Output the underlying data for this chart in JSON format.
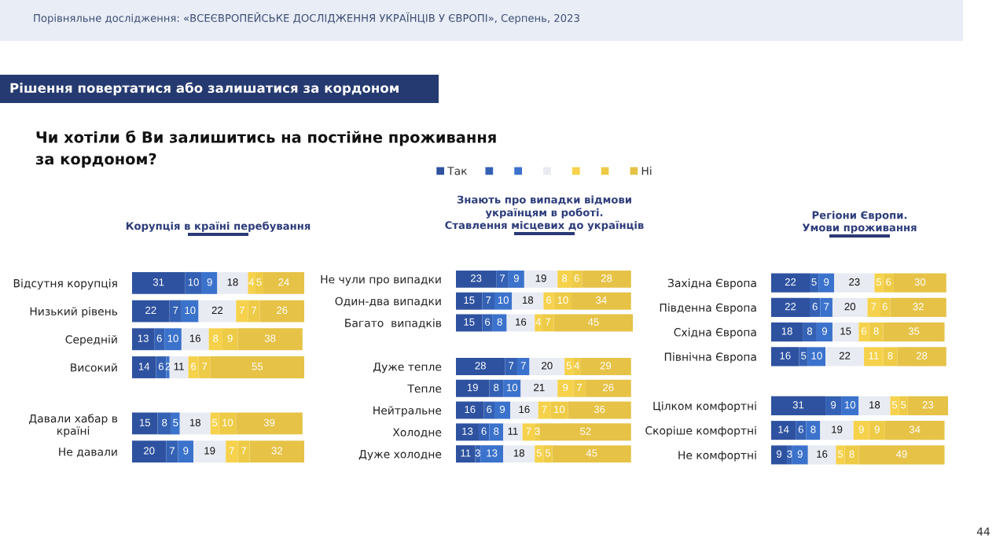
{
  "chart_data": [
    {
      "type": "bar",
      "orientation": "horizontal",
      "stacked": true,
      "data_labels": true,
      "title": "Корупція в країні перебування",
      "annotations": [
        "Порівняльне дослідження: «ВСЕЄВРОПЕЙСЬКЕ ДОСЛІДЖЕННЯ УКРАЇНЦІВ У ЄВРОПІ», Серпень, 2023",
        "Рішення повертатися або залишатися за кордоном",
        "Чи хотіли б Ви залишитись на постійне проживання\nза кордоном?",
        "44"
      ],
      "categories": [
        "Відсутня корупція",
        "Низький рівень",
        "Середній",
        "Високий",
        null,
        "Давали хабар в\nкраїні",
        "Не давали"
      ],
      "series": [
        {
          "color": "#2e52a0",
          "values": [
            31,
            22,
            13,
            14,
            null,
            15,
            20
          ]
        },
        {
          "color": "#3461b4",
          "values": [
            10,
            7,
            6,
            6,
            null,
            8,
            7
          ]
        },
        {
          "color": "#3b72cc",
          "values": [
            9,
            10,
            10,
            2,
            null,
            5,
            9
          ]
        },
        {
          "color": "#e9ebf3",
          "values": [
            18,
            22,
            16,
            11,
            null,
            18,
            19
          ]
        },
        {
          "color": "#f6d24c",
          "values": [
            4,
            7,
            8,
            6,
            null,
            5,
            7
          ]
        },
        {
          "color": "#eecb47",
          "values": [
            5,
            7,
            9,
            7,
            null,
            10,
            7
          ]
        },
        {
          "color": "#e6c247",
          "values": [
            24,
            26,
            38,
            55,
            null,
            39,
            32
          ]
        }
      ]
    },
    {
      "type": "bar",
      "orientation": "horizontal",
      "stacked": true,
      "data_labels": true,
      "legend": "top",
      "title": "Знають про випадки відмови\nукраїнцям в роботі.\nСтавлення місцевих до українців",
      "categories": [
        "Не чули про випадки",
        "Один-два випадки",
        "Багато  випадків",
        null,
        "Дуже тепле",
        "Тепле",
        "Нейтральне",
        "Холодне",
        "Дуже холодне"
      ],
      "series": [
        {
          "name": "Так",
          "color": "#2e52a0",
          "values": [
            23,
            15,
            15,
            null,
            28,
            19,
            16,
            13,
            11
          ]
        },
        {
          "color": "#3461b4",
          "values": [
            7,
            7,
            6,
            null,
            7,
            8,
            6,
            6,
            3
          ]
        },
        {
          "color": "#3b72cc",
          "values": [
            9,
            10,
            8,
            null,
            7,
            10,
            9,
            8,
            13
          ]
        },
        {
          "color": "#e9ebf3",
          "values": [
            19,
            18,
            16,
            null,
            20,
            21,
            16,
            11,
            18
          ]
        },
        {
          "color": "#f6d24c",
          "values": [
            8,
            6,
            4,
            null,
            5,
            9,
            7,
            7,
            5
          ]
        },
        {
          "color": "#eecb47",
          "values": [
            6,
            10,
            7,
            null,
            4,
            7,
            10,
            3,
            5
          ]
        },
        {
          "name": "Ні",
          "color": "#e6c247",
          "values": [
            28,
            34,
            45,
            null,
            29,
            26,
            36,
            52,
            45
          ]
        }
      ]
    },
    {
      "type": "bar",
      "orientation": "horizontal",
      "stacked": true,
      "data_labels": true,
      "title": "Регіони Європи.\nУмови проживання",
      "categories": [
        "Західна Європа",
        "Південна Європа",
        "Східна Європа",
        "Північна Європа",
        null,
        "Цілком комфортні",
        "Скоріше комфортні",
        "Не комфортні"
      ],
      "series": [
        {
          "color": "#2e52a0",
          "values": [
            22,
            22,
            18,
            16,
            null,
            31,
            14,
            9
          ]
        },
        {
          "color": "#3461b4",
          "values": [
            5,
            6,
            8,
            5,
            null,
            9,
            6,
            3
          ]
        },
        {
          "color": "#3b72cc",
          "values": [
            9,
            7,
            9,
            10,
            null,
            10,
            8,
            9
          ]
        },
        {
          "color": "#e9ebf3",
          "values": [
            23,
            20,
            15,
            22,
            null,
            18,
            19,
            16
          ]
        },
        {
          "color": "#f6d24c",
          "values": [
            5,
            7,
            6,
            11,
            null,
            5,
            9,
            5
          ]
        },
        {
          "color": "#eecb47",
          "values": [
            6,
            6,
            8,
            8,
            null,
            5,
            9,
            8
          ]
        },
        {
          "color": "#e6c247",
          "values": [
            30,
            32,
            35,
            28,
            null,
            23,
            34,
            49
          ]
        }
      ]
    }
  ]
}
